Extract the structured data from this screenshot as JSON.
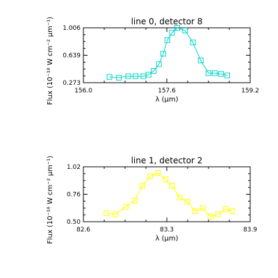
{
  "chart_data": [
    {
      "type": "line",
      "title": "line 0, detector 8",
      "xlabel": "λ (μm)",
      "ylabel": "Flux (10⁻¹⁸ W cm⁻² μm⁻¹)",
      "xlim": [
        156.0,
        159.2
      ],
      "ylim": [
        0.273,
        1.006
      ],
      "xticks": [
        "156.0",
        "157.6",
        "159.2"
      ],
      "yticks": [
        "0.273",
        "0.639",
        "1.006"
      ],
      "grid": false,
      "series": [
        {
          "color": "#00d4c8",
          "marker": "square",
          "x": [
            156.5,
            156.68,
            156.86,
            157.0,
            157.15,
            157.25,
            157.35,
            157.45,
            157.53,
            157.61,
            157.7,
            157.8,
            157.95,
            158.1,
            158.25,
            158.4,
            158.52,
            158.64,
            158.76
          ],
          "y": [
            0.35,
            0.34,
            0.36,
            0.36,
            0.36,
            0.38,
            0.43,
            0.52,
            0.66,
            0.84,
            0.94,
            1.006,
            0.97,
            0.81,
            0.57,
            0.4,
            0.4,
            0.39,
            0.37
          ]
        }
      ]
    },
    {
      "type": "line",
      "title": "line 1, detector 2",
      "xlabel": "λ (μm)",
      "ylabel": "Flux (10⁻¹⁸ W cm⁻² μm⁻¹)",
      "xlim": [
        82.6,
        83.9
      ],
      "ylim": [
        0.5,
        1.02
      ],
      "xticks": [
        "82.6",
        "83.3",
        "83.9"
      ],
      "yticks": [
        "0.50",
        "0.76",
        "1.02"
      ],
      "grid": false,
      "series": [
        {
          "color": "#ffff00",
          "marker": "square",
          "x": [
            82.78,
            82.85,
            82.93,
            83.0,
            83.06,
            83.12,
            83.18,
            83.24,
            83.29,
            83.35,
            83.41,
            83.47,
            83.53,
            83.59,
            83.65,
            83.71,
            83.76
          ],
          "y": [
            0.58,
            0.57,
            0.64,
            0.7,
            0.84,
            0.93,
            0.96,
            0.9,
            0.84,
            0.73,
            0.69,
            0.6,
            0.63,
            0.55,
            0.57,
            0.62,
            0.6
          ]
        }
      ]
    }
  ]
}
